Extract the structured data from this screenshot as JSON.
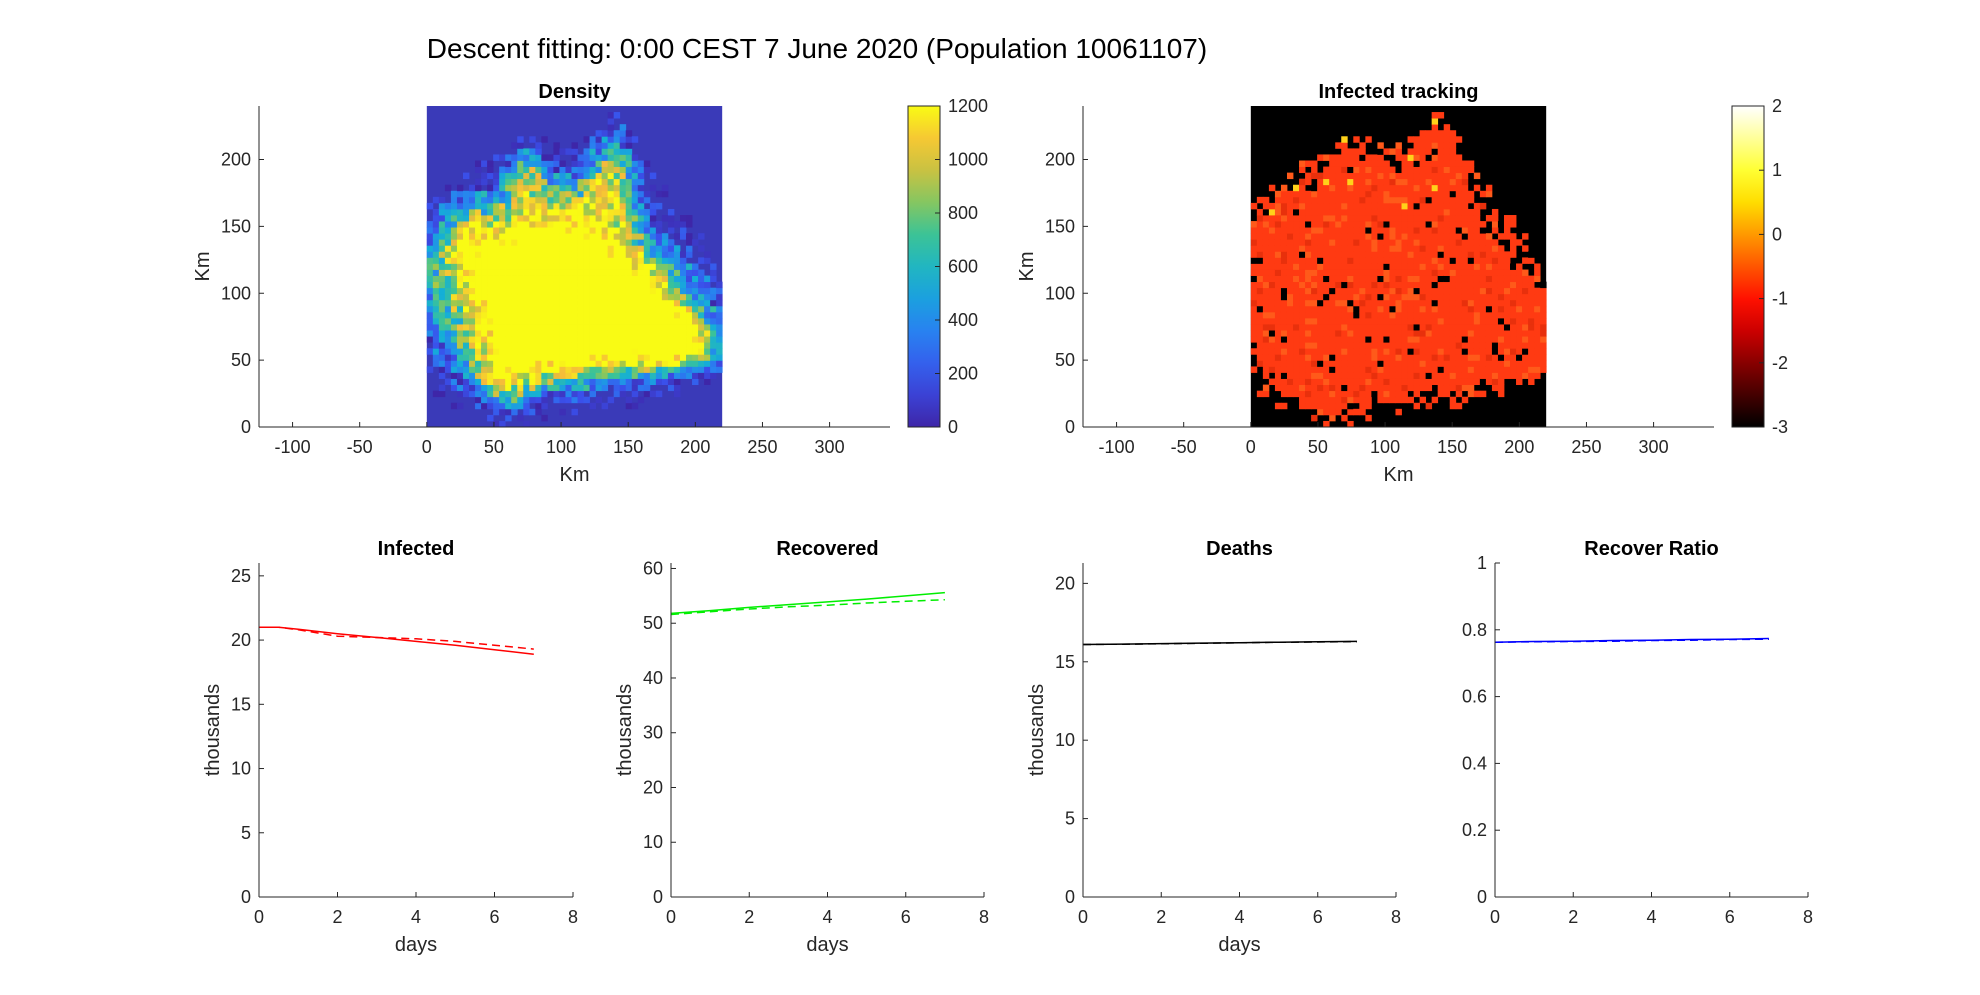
{
  "figure": {
    "title": "Descent fitting: 0:00 CEST 7 June 2020 (Population 10061107)"
  },
  "chart_data": [
    {
      "id": "density",
      "type": "heatmap",
      "title": "Density",
      "xlabel": "Km",
      "ylabel": "Km",
      "xlim": [
        -125,
        345
      ],
      "ylim": [
        0,
        240
      ],
      "xticks": [
        -100,
        -50,
        0,
        50,
        100,
        150,
        200,
        250,
        300
      ],
      "yticks": [
        0,
        50,
        100,
        150,
        200
      ],
      "map_extent": {
        "x": [
          0,
          220
        ],
        "y": [
          0,
          240
        ]
      },
      "colormap": "parula",
      "colorbar": {
        "range": [
          0,
          1200
        ],
        "ticks": [
          0,
          200,
          400,
          600,
          800,
          1000,
          1200
        ]
      },
      "colors": {
        "background": "#3a3ab8",
        "high": "#f9d73b"
      }
    },
    {
      "id": "infected-tracking",
      "type": "heatmap",
      "title": "Infected tracking",
      "xlabel": "Km",
      "ylabel": "Km",
      "xlim": [
        -125,
        345
      ],
      "ylim": [
        0,
        240
      ],
      "xticks": [
        -100,
        -50,
        0,
        50,
        100,
        150,
        200,
        250,
        300
      ],
      "yticks": [
        0,
        50,
        100,
        150,
        200
      ],
      "map_extent": {
        "x": [
          0,
          220
        ],
        "y": [
          0,
          240
        ]
      },
      "colormap": "hot",
      "colorbar": {
        "range": [
          -3,
          2
        ],
        "ticks": [
          -3,
          -2,
          -1,
          0,
          1,
          2
        ]
      },
      "colors": {
        "background": "#000000",
        "cell": "#ff3a12"
      }
    },
    {
      "id": "infected",
      "type": "line",
      "title": "Infected",
      "xlabel": "days",
      "ylabel": "thousands",
      "xlim": [
        0,
        8
      ],
      "ylim": [
        0,
        26
      ],
      "xticks": [
        0,
        2,
        4,
        6,
        8
      ],
      "yticks": [
        0,
        5,
        10,
        15,
        20,
        25
      ],
      "color": "#ff0000",
      "series": [
        {
          "style": "solid",
          "x": [
            0,
            0.5,
            1,
            2,
            3,
            4,
            5,
            6,
            7
          ],
          "y": [
            21.0,
            21.0,
            20.85,
            20.5,
            20.2,
            19.9,
            19.6,
            19.25,
            18.9
          ]
        },
        {
          "style": "dashed",
          "x": [
            0,
            0.5,
            1,
            2,
            3,
            4,
            5,
            6,
            7
          ],
          "y": [
            21.0,
            21.0,
            20.8,
            20.3,
            20.2,
            20.1,
            19.9,
            19.6,
            19.3
          ]
        }
      ]
    },
    {
      "id": "recovered",
      "type": "line",
      "title": "Recovered",
      "xlabel": "days",
      "ylabel": "thousands",
      "xlim": [
        0,
        8
      ],
      "ylim": [
        0,
        61
      ],
      "xticks": [
        0,
        2,
        4,
        6,
        8
      ],
      "yticks": [
        0,
        10,
        20,
        30,
        40,
        50,
        60
      ],
      "color": "#00ee00",
      "series": [
        {
          "style": "solid",
          "x": [
            0,
            1,
            2,
            3,
            4,
            5,
            6,
            7
          ],
          "y": [
            51.8,
            52.3,
            52.9,
            53.4,
            53.9,
            54.4,
            55.0,
            55.6
          ]
        },
        {
          "style": "dashed",
          "x": [
            0,
            1,
            2,
            3,
            4,
            5,
            6,
            7
          ],
          "y": [
            51.6,
            52.1,
            52.6,
            53.0,
            53.3,
            53.7,
            54.0,
            54.3
          ]
        }
      ]
    },
    {
      "id": "deaths",
      "type": "line",
      "title": "Deaths",
      "xlabel": "days",
      "ylabel": "thousands",
      "xlim": [
        0,
        8
      ],
      "ylim": [
        0,
        21.3
      ],
      "xticks": [
        0,
        2,
        4,
        6,
        8
      ],
      "yticks": [
        0,
        5,
        10,
        15,
        20
      ],
      "color": "#000000",
      "series": [
        {
          "style": "solid",
          "x": [
            0,
            1,
            2,
            3,
            4,
            5,
            6,
            7
          ],
          "y": [
            16.1,
            16.13,
            16.16,
            16.19,
            16.22,
            16.25,
            16.28,
            16.3
          ]
        },
        {
          "style": "dashed",
          "x": [
            0,
            1,
            2,
            3,
            4,
            5,
            6,
            7
          ],
          "y": [
            16.1,
            16.12,
            16.15,
            16.18,
            16.21,
            16.24,
            16.26,
            16.29
          ]
        }
      ]
    },
    {
      "id": "recover-ratio",
      "type": "line",
      "title": "Recover Ratio",
      "xlabel": "",
      "ylabel": "",
      "xlim": [
        0,
        8
      ],
      "ylim": [
        0,
        1
      ],
      "xticks": [
        0,
        2,
        4,
        6,
        8
      ],
      "yticks": [
        0,
        0.2,
        0.4,
        0.6,
        0.8,
        1
      ],
      "color": "#0000ff",
      "series": [
        {
          "style": "solid",
          "x": [
            0,
            1,
            2,
            3,
            4,
            5,
            6,
            7
          ],
          "y": [
            0.763,
            0.765,
            0.766,
            0.768,
            0.769,
            0.771,
            0.772,
            0.774
          ]
        },
        {
          "style": "dashed",
          "x": [
            0,
            1,
            2,
            3,
            4,
            5,
            6,
            7
          ],
          "y": [
            0.763,
            0.764,
            0.765,
            0.766,
            0.768,
            0.769,
            0.771,
            0.772
          ]
        }
      ]
    }
  ]
}
